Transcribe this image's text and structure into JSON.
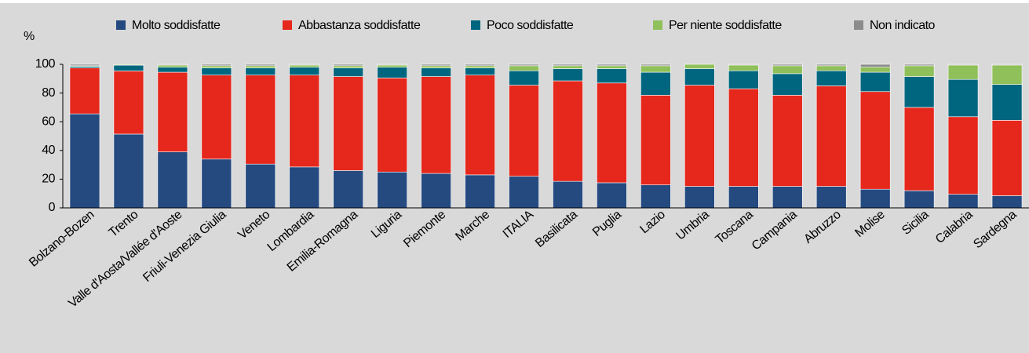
{
  "chart_data": {
    "type": "stacked_bar",
    "y_label": "%",
    "categories": [
      "Bolzano-Bozen",
      "Trento",
      "Valle d'Aosta/Vallée d'Aoste",
      "Friuli-Venezia Giulia",
      "Veneto",
      "Lombardia",
      "Emilia-Romagna",
      "Liguria",
      "Piemonte",
      "Marche",
      "ITALIA",
      "Basilicata",
      "Puglia",
      "Lazio",
      "Umbria",
      "Toscana",
      "Campania",
      "Abruzzo",
      "Molise",
      "Sicilia",
      "Calabria",
      "Sardegna"
    ],
    "series": [
      {
        "name": "Molto soddisfatte",
        "color": "#244a80",
        "values": [
          65.5,
          51.4,
          39,
          34,
          30.5,
          28.5,
          26,
          25,
          24,
          23,
          22,
          18.5,
          17.5,
          16,
          15,
          15,
          15,
          15,
          13,
          12,
          9.5,
          8.5
        ]
      },
      {
        "name": "Abbastanza soddisfatte",
        "color": "#e5271c",
        "values": [
          32,
          44,
          55.5,
          58.5,
          62,
          64,
          65.5,
          65.5,
          67.5,
          69.5,
          63.5,
          70,
          69.5,
          62.5,
          70.5,
          68,
          63.5,
          70,
          68,
          58,
          54,
          52.5
        ]
      },
      {
        "name": "Poco soddisfatte",
        "color": "#00667f",
        "values": [
          1,
          4,
          3.5,
          5,
          5,
          5.5,
          6,
          7.5,
          6,
          5,
          10,
          8.5,
          10,
          16,
          11.5,
          12.5,
          15,
          10.5,
          13.5,
          21.5,
          26,
          25
        ]
      },
      {
        "name": "Per niente soddisfatte",
        "color": "#90c05a",
        "values": [
          0.5,
          0.5,
          1.5,
          1.5,
          1.5,
          1.5,
          1.5,
          1.5,
          1.5,
          1.5,
          3.5,
          2,
          2,
          4.5,
          3,
          4,
          5.5,
          3.5,
          3.5,
          7.5,
          10,
          13.5
        ]
      },
      {
        "name": "Non indicato",
        "color": "#8c8c8c",
        "values": [
          1,
          0.5,
          0.5,
          1,
          1,
          0.5,
          1,
          0.5,
          1,
          1,
          1,
          1,
          1,
          1,
          0,
          0.5,
          1,
          1,
          2,
          1,
          0.5,
          0.5
        ]
      }
    ],
    "ylim": [
      0,
      100
    ],
    "yticks": [
      0,
      20,
      40,
      60,
      80,
      100
    ],
    "legend": "top"
  }
}
